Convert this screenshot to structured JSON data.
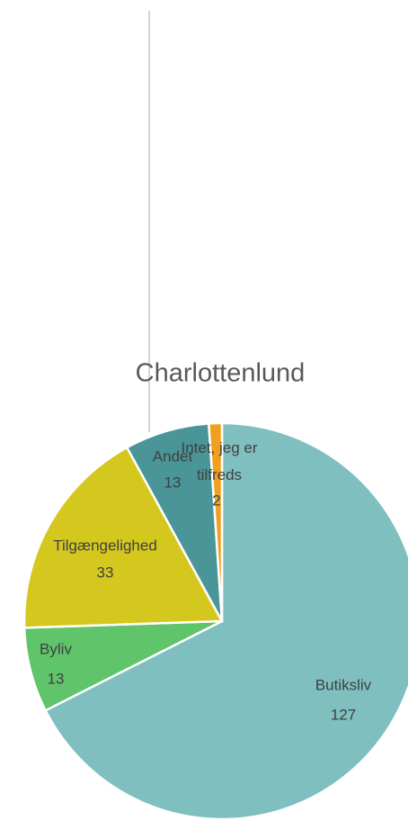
{
  "chart_data": {
    "type": "pie",
    "title": "Charlottenlund",
    "categories": [
      "Butiksliv",
      "Byliv",
      "Tilgængelighed",
      "Andet",
      "Intet, jeg er tilfreds"
    ],
    "values": [
      127,
      13,
      33,
      13,
      2
    ],
    "colors": [
      "#7fbfbf",
      "#5fc46a",
      "#d4c81f",
      "#4a9598",
      "#f0a020"
    ]
  }
}
